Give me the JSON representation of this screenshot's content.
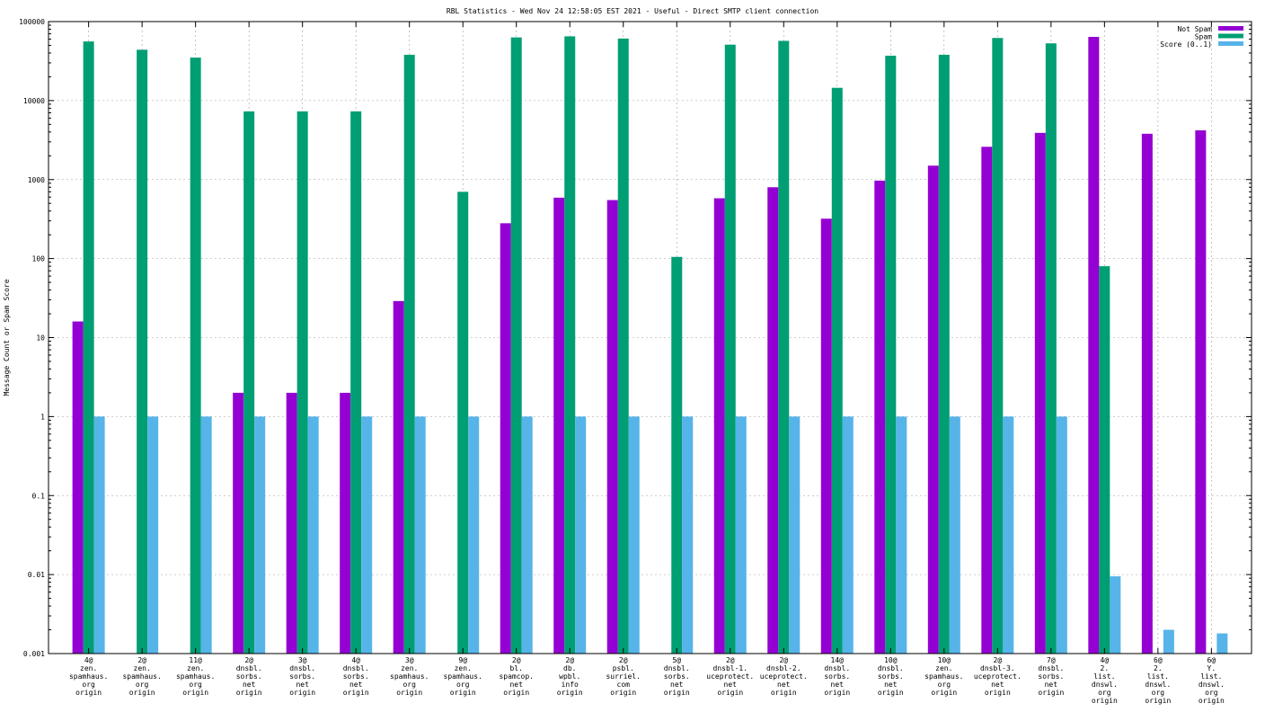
{
  "chart_data": {
    "type": "bar",
    "title": "RBL Statistics - Wed Nov 24 12:58:05 EST 2021 - Useful - Direct SMTP client connection",
    "ylabel": "Message Count or Spam Score",
    "xlabel": "",
    "yscale": "log",
    "ylim": [
      0.001,
      100000
    ],
    "grid": true,
    "legend_position": "top-right",
    "y_tick_labels": [
      "0.001",
      "0.01",
      "0.1",
      "1",
      "10",
      "100",
      "1000",
      "10000",
      "100000"
    ],
    "categories": [
      [
        "4@",
        "zen.",
        "spamhaus.",
        "org",
        "origin"
      ],
      [
        "2@",
        "zen.",
        "spamhaus.",
        "org",
        "origin"
      ],
      [
        "11@",
        "zen.",
        "spamhaus.",
        "org",
        "origin"
      ],
      [
        "2@",
        "dnsbl.",
        "sorbs.",
        "net",
        "origin"
      ],
      [
        "3@",
        "dnsbl.",
        "sorbs.",
        "net",
        "origin"
      ],
      [
        "4@",
        "dnsbl.",
        "sorbs.",
        "net",
        "origin"
      ],
      [
        "3@",
        "zen.",
        "spamhaus.",
        "org",
        "origin"
      ],
      [
        "9@",
        "zen.",
        "spamhaus.",
        "org",
        "origin"
      ],
      [
        "2@",
        "bl.",
        "spamcop.",
        "net",
        "origin"
      ],
      [
        "2@",
        "db.",
        "wpbl.",
        "info",
        "origin"
      ],
      [
        "2@",
        "psbl.",
        "surriel.",
        "com",
        "origin"
      ],
      [
        "5@",
        "dnsbl.",
        "sorbs.",
        "net",
        "origin"
      ],
      [
        "2@",
        "dnsbl-1.",
        "uceprotect.",
        "net",
        "origin"
      ],
      [
        "2@",
        "dnsbl-2.",
        "uceprotect.",
        "net",
        "origin"
      ],
      [
        "14@",
        "dnsbl.",
        "sorbs.",
        "net",
        "origin"
      ],
      [
        "10@",
        "dnsbl.",
        "sorbs.",
        "net",
        "origin"
      ],
      [
        "10@",
        "zen.",
        "spamhaus.",
        "org",
        "origin"
      ],
      [
        "2@",
        "dnsbl-3.",
        "uceprotect.",
        "net",
        "origin"
      ],
      [
        "7@",
        "dnsbl.",
        "sorbs.",
        "net",
        "origin"
      ],
      [
        "4@",
        "2.",
        "list.",
        "dnswl.",
        "org",
        "origin"
      ],
      [
        "6@",
        "2.",
        "list.",
        "dnswl.",
        "org",
        "origin"
      ],
      [
        "6@",
        "Y.",
        "list.",
        "dnswl.",
        "org",
        "origin"
      ]
    ],
    "series": [
      {
        "name": "Not Spam",
        "color": "#9400d3",
        "values": [
          16,
          null,
          null,
          2,
          2,
          2,
          29,
          null,
          280,
          590,
          550,
          null,
          580,
          800,
          320,
          970,
          1500,
          2600,
          3900,
          64000,
          3800,
          4200
        ]
      },
      {
        "name": "Spam",
        "color": "#009e73",
        "values": [
          56000,
          44000,
          35000,
          7300,
          7300,
          7300,
          38000,
          700,
          63000,
          65000,
          61000,
          105,
          51000,
          57000,
          14500,
          37000,
          38000,
          62000,
          53000,
          80,
          null,
          null
        ]
      },
      {
        "name": "Score (0..1)",
        "color": "#56b4e9",
        "values": [
          1,
          1,
          1,
          1,
          1,
          1,
          1,
          1,
          1,
          1,
          1,
          1,
          1,
          1,
          1,
          1,
          1,
          1,
          1,
          0.0095,
          0.002,
          0.0018
        ]
      }
    ]
  }
}
